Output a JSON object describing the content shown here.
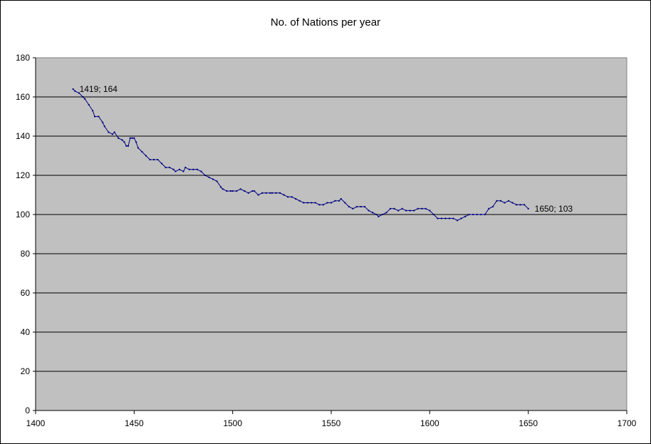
{
  "chart_data": {
    "type": "line",
    "title": "No. of Nations per year",
    "xlabel": "",
    "ylabel": "",
    "xlim": [
      1400,
      1700
    ],
    "ylim": [
      0,
      180
    ],
    "x_ticks": [
      1400,
      1450,
      1500,
      1550,
      1600,
      1650,
      1700
    ],
    "y_ticks": [
      0,
      20,
      40,
      60,
      80,
      100,
      120,
      140,
      160,
      180
    ],
    "grid": "horizontal",
    "legend": "none",
    "colors": {
      "plot_area": "#c0c0c0",
      "grid": "#000000",
      "series": "#000080"
    },
    "series": [
      {
        "x": [
          1419,
          1420,
          1422,
          1424,
          1425,
          1427,
          1429,
          1430,
          1432,
          1434,
          1435,
          1437,
          1439,
          1440,
          1442,
          1444,
          1445,
          1446,
          1447,
          1448,
          1449,
          1450,
          1451,
          1452,
          1454,
          1456,
          1458,
          1460,
          1462,
          1464,
          1466,
          1468,
          1470,
          1471,
          1473,
          1475,
          1476,
          1478,
          1480,
          1482,
          1484,
          1486,
          1488,
          1490,
          1492,
          1494,
          1495,
          1497,
          1499,
          1500,
          1502,
          1504,
          1506,
          1508,
          1510,
          1511,
          1513,
          1515,
          1517,
          1519,
          1520,
          1522,
          1524,
          1526,
          1528,
          1530,
          1532,
          1534,
          1536,
          1538,
          1540,
          1542,
          1544,
          1546,
          1548,
          1550,
          1552,
          1554,
          1555,
          1557,
          1559,
          1561,
          1563,
          1565,
          1567,
          1569,
          1571,
          1573,
          1574,
          1576,
          1578,
          1580,
          1582,
          1584,
          1586,
          1588,
          1590,
          1592,
          1594,
          1596,
          1598,
          1600,
          1602,
          1604,
          1606,
          1608,
          1610,
          1612,
          1614,
          1616,
          1618,
          1620,
          1622,
          1624,
          1626,
          1628,
          1630,
          1632,
          1634,
          1636,
          1638,
          1640,
          1642,
          1644,
          1646,
          1648,
          1650
        ],
        "y": [
          164,
          163,
          162,
          160,
          159,
          156,
          153,
          150,
          150,
          147,
          145,
          142,
          141,
          142,
          139,
          138,
          137,
          135,
          135,
          139,
          139,
          139,
          137,
          134,
          132,
          130,
          128,
          128,
          128,
          126,
          124,
          124,
          123,
          122,
          123,
          122,
          124,
          123,
          123,
          123,
          122,
          120,
          119,
          118,
          117,
          114,
          113,
          112,
          112,
          112,
          112,
          113,
          112,
          111,
          112,
          112,
          110,
          111,
          111,
          111,
          111,
          111,
          111,
          110,
          109,
          109,
          108,
          107,
          106,
          106,
          106,
          106,
          105,
          105,
          106,
          106,
          107,
          107,
          108,
          106,
          104,
          103,
          104,
          104,
          104,
          102,
          101,
          100,
          99,
          100,
          101,
          103,
          103,
          102,
          103,
          102,
          102,
          102,
          103,
          103,
          103,
          102,
          100,
          98,
          98,
          98,
          98,
          98,
          97,
          98,
          99,
          100,
          100,
          100,
          100,
          100,
          103,
          104,
          107,
          107,
          106,
          107,
          106,
          105,
          105,
          105,
          103
        ]
      }
    ],
    "annotations": [
      {
        "text": "1419; 164",
        "x": 1419,
        "y": 164,
        "anchor": "right"
      },
      {
        "text": "1650; 103",
        "x": 1650,
        "y": 103,
        "anchor": "right"
      }
    ]
  }
}
